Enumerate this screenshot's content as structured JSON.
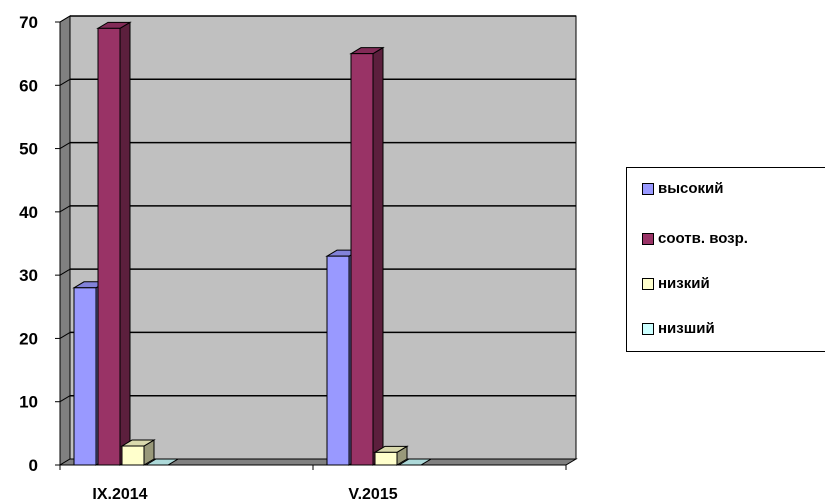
{
  "chart_data": {
    "type": "bar",
    "categories": [
      "IX.2014",
      "V.2015"
    ],
    "series": [
      {
        "name": "высокий",
        "values": [
          28,
          33
        ],
        "color": "#9999FF"
      },
      {
        "name": "соотв. возр.",
        "values": [
          69,
          65
        ],
        "color": "#993366"
      },
      {
        "name": "низкий",
        "values": [
          3,
          2
        ],
        "color": "#FFFFCC"
      },
      {
        "name": "низший",
        "values": [
          0,
          0
        ],
        "color": "#CCFFFF"
      }
    ],
    "ylim": [
      0,
      70
    ],
    "yticks": [
      "0",
      "10",
      "20",
      "30",
      "40",
      "50",
      "60",
      "70"
    ],
    "grid": true,
    "legend_position": "right",
    "plot_background": "#C0C0C0",
    "view": "3d-clustered-column"
  }
}
